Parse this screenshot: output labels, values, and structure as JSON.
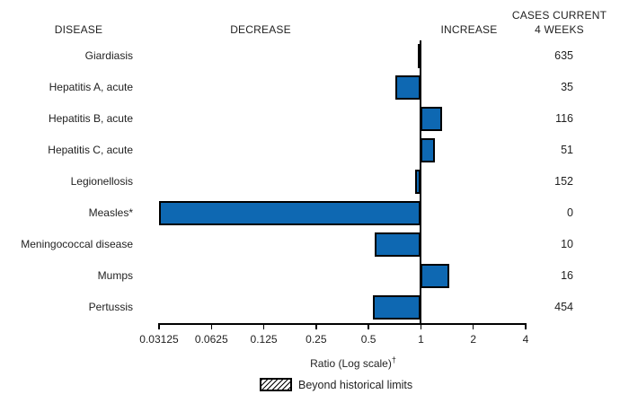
{
  "header": {
    "disease": "DISEASE",
    "decrease": "DECREASE",
    "increase": "INCREASE",
    "cases_line1": "CASES CURRENT",
    "cases_line2": "4 WEEKS"
  },
  "axis": {
    "label": "Ratio (Log scale)",
    "label_sup": "†",
    "ticks": [
      "0.03125",
      "0.0625",
      "0.125",
      "0.25",
      "0.5",
      "1",
      "2",
      "4"
    ]
  },
  "legend": {
    "label": "Beyond historical limits",
    "swatch_style": "hatched"
  },
  "colors": {
    "bar_fill": "#0e68b2",
    "bar_border": "#000000",
    "axis": "#000000",
    "text": "#1f1f1f"
  },
  "chart_data": {
    "type": "bar",
    "orientation": "horizontal",
    "scale": "log2",
    "xlabel": "Ratio (Log scale)†",
    "xlim": [
      0.03125,
      4
    ],
    "baseline": 1,
    "grid": false,
    "legend_position": "bottom",
    "columns": [
      "DISEASE",
      "RATIO",
      "CASES CURRENT 4 WEEKS"
    ],
    "rows": [
      {
        "disease": "Giardiasis",
        "ratio": 0.98,
        "cases": "635",
        "direction": "decrease",
        "beyond_historical_limits": false
      },
      {
        "disease": "Hepatitis A, acute",
        "ratio": 0.71,
        "cases": "35",
        "direction": "decrease",
        "beyond_historical_limits": false
      },
      {
        "disease": "Hepatitis B, acute",
        "ratio": 1.32,
        "cases": "116",
        "direction": "increase",
        "beyond_historical_limits": false
      },
      {
        "disease": "Hepatitis C, acute",
        "ratio": 1.21,
        "cases": "51",
        "direction": "increase",
        "beyond_historical_limits": false
      },
      {
        "disease": "Legionellosis",
        "ratio": 0.93,
        "cases": "152",
        "direction": "decrease",
        "beyond_historical_limits": false
      },
      {
        "disease": "Measles*",
        "ratio": 0.03125,
        "cases": "0",
        "direction": "decrease",
        "beyond_historical_limits": false
      },
      {
        "disease": "Meningococcal disease",
        "ratio": 0.54,
        "cases": "10",
        "direction": "decrease",
        "beyond_historical_limits": false
      },
      {
        "disease": "Mumps",
        "ratio": 1.46,
        "cases": "16",
        "direction": "increase",
        "beyond_historical_limits": false
      },
      {
        "disease": "Pertussis",
        "ratio": 0.53,
        "cases": "454",
        "direction": "decrease",
        "beyond_historical_limits": false
      }
    ]
  }
}
